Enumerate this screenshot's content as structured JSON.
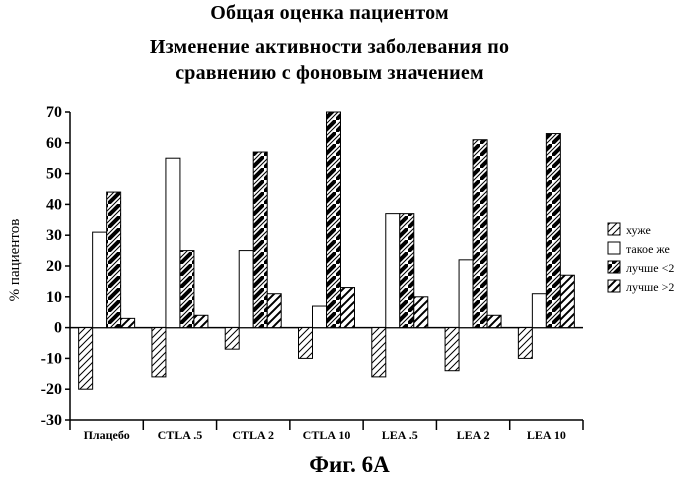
{
  "figure": {
    "title_line1": "Общая оценка пациентом",
    "title_line2": "Изменение активности заболевания по",
    "title_line3": "сравнению с фоновым значением",
    "caption": "Фиг. 6А"
  },
  "chart_data": {
    "type": "bar",
    "ylabel": "% пациентов",
    "xlabel": "",
    "ylim": [
      -30,
      70
    ],
    "yticks": [
      -30,
      -20,
      -10,
      0,
      10,
      20,
      30,
      40,
      50,
      60,
      70
    ],
    "categories": [
      "Плацебо",
      "CTLA .5",
      "CTLA 2",
      "CTLA 10",
      "LEA .5",
      "LEA 2",
      "LEA 10"
    ],
    "series": [
      {
        "name": "хуже",
        "pattern": "diag-thin",
        "values": [
          -20,
          -16,
          -7,
          -10,
          -16,
          -14,
          -10
        ]
      },
      {
        "name": "такое же",
        "pattern": "blank",
        "values": [
          31,
          55,
          25,
          7,
          37,
          22,
          11
        ]
      },
      {
        "name": "лучше <2",
        "pattern": "diag-mixed",
        "values": [
          44,
          25,
          57,
          70,
          37,
          61,
          63
        ]
      },
      {
        "name": "лучше >2",
        "pattern": "diag-thick",
        "values": [
          3,
          4,
          11,
          13,
          10,
          4,
          17
        ]
      }
    ],
    "grid": false,
    "legend_position": "right"
  }
}
